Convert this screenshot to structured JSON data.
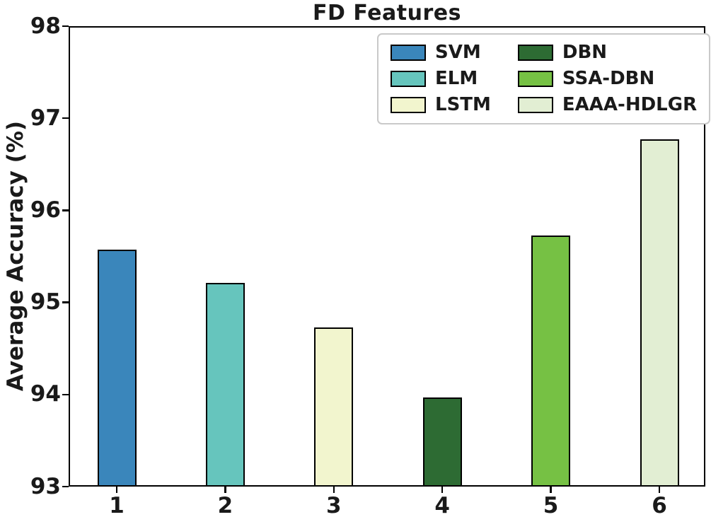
{
  "chart_data": {
    "type": "bar",
    "title": "FD Features",
    "xlabel": "",
    "ylabel": "Average Accuracy (%)",
    "ylim": [
      93,
      98
    ],
    "yticks": [
      93,
      94,
      95,
      96,
      97,
      98
    ],
    "grid": false,
    "legend_position": "upper-right",
    "legend_columns": 2,
    "categories": [
      "1",
      "2",
      "3",
      "4",
      "5",
      "6"
    ],
    "series": [
      {
        "name": "SVM",
        "category": "1",
        "value": 95.57,
        "color": "#3a86bb"
      },
      {
        "name": "ELM",
        "category": "2",
        "value": 95.21,
        "color": "#66c5bd"
      },
      {
        "name": "LSTM",
        "category": "3",
        "value": 94.73,
        "color": "#f2f5ce"
      },
      {
        "name": "DBN",
        "category": "4",
        "value": 93.97,
        "color": "#2d6b33"
      },
      {
        "name": "SSA-DBN",
        "category": "5",
        "value": 95.73,
        "color": "#76c144"
      },
      {
        "name": "EAAA-HDLGR",
        "category": "6",
        "value": 96.77,
        "color": "#e2eed3"
      }
    ],
    "axis_color": "#000000",
    "background_color": "#ffffff"
  }
}
